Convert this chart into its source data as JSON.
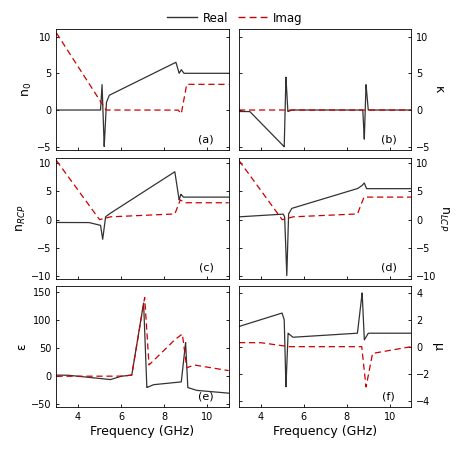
{
  "freq_range": [
    3.0,
    11.0
  ],
  "legend_real_label": "Real",
  "legend_imag_label": "Imag",
  "real_color": "#333333",
  "imag_color": "#cc0000",
  "real_lw": 0.9,
  "imag_lw": 0.9,
  "ylabel_a": "n$_0$",
  "ylabel_b": "κ",
  "ylabel_c": "n$_{RCP}$",
  "ylabel_d": "n$_{LCP}$",
  "ylabel_e": "ε",
  "ylabel_f": "μ",
  "xlabel": "Frequency (GHz)",
  "ylim_a": [
    -5.5,
    11.0
  ],
  "ylim_b": [
    -5.5,
    11.0
  ],
  "ylim_c": [
    -10.5,
    11.0
  ],
  "ylim_d": [
    -10.5,
    11.0
  ],
  "ylim_e": [
    -55,
    160
  ],
  "ylim_f": [
    -4.5,
    4.5
  ],
  "label_a": "(a)",
  "label_b": "(b)",
  "label_c": "(c)",
  "label_d": "(d)",
  "label_e": "(e)",
  "label_f": "(f)",
  "background_color": "#ffffff"
}
